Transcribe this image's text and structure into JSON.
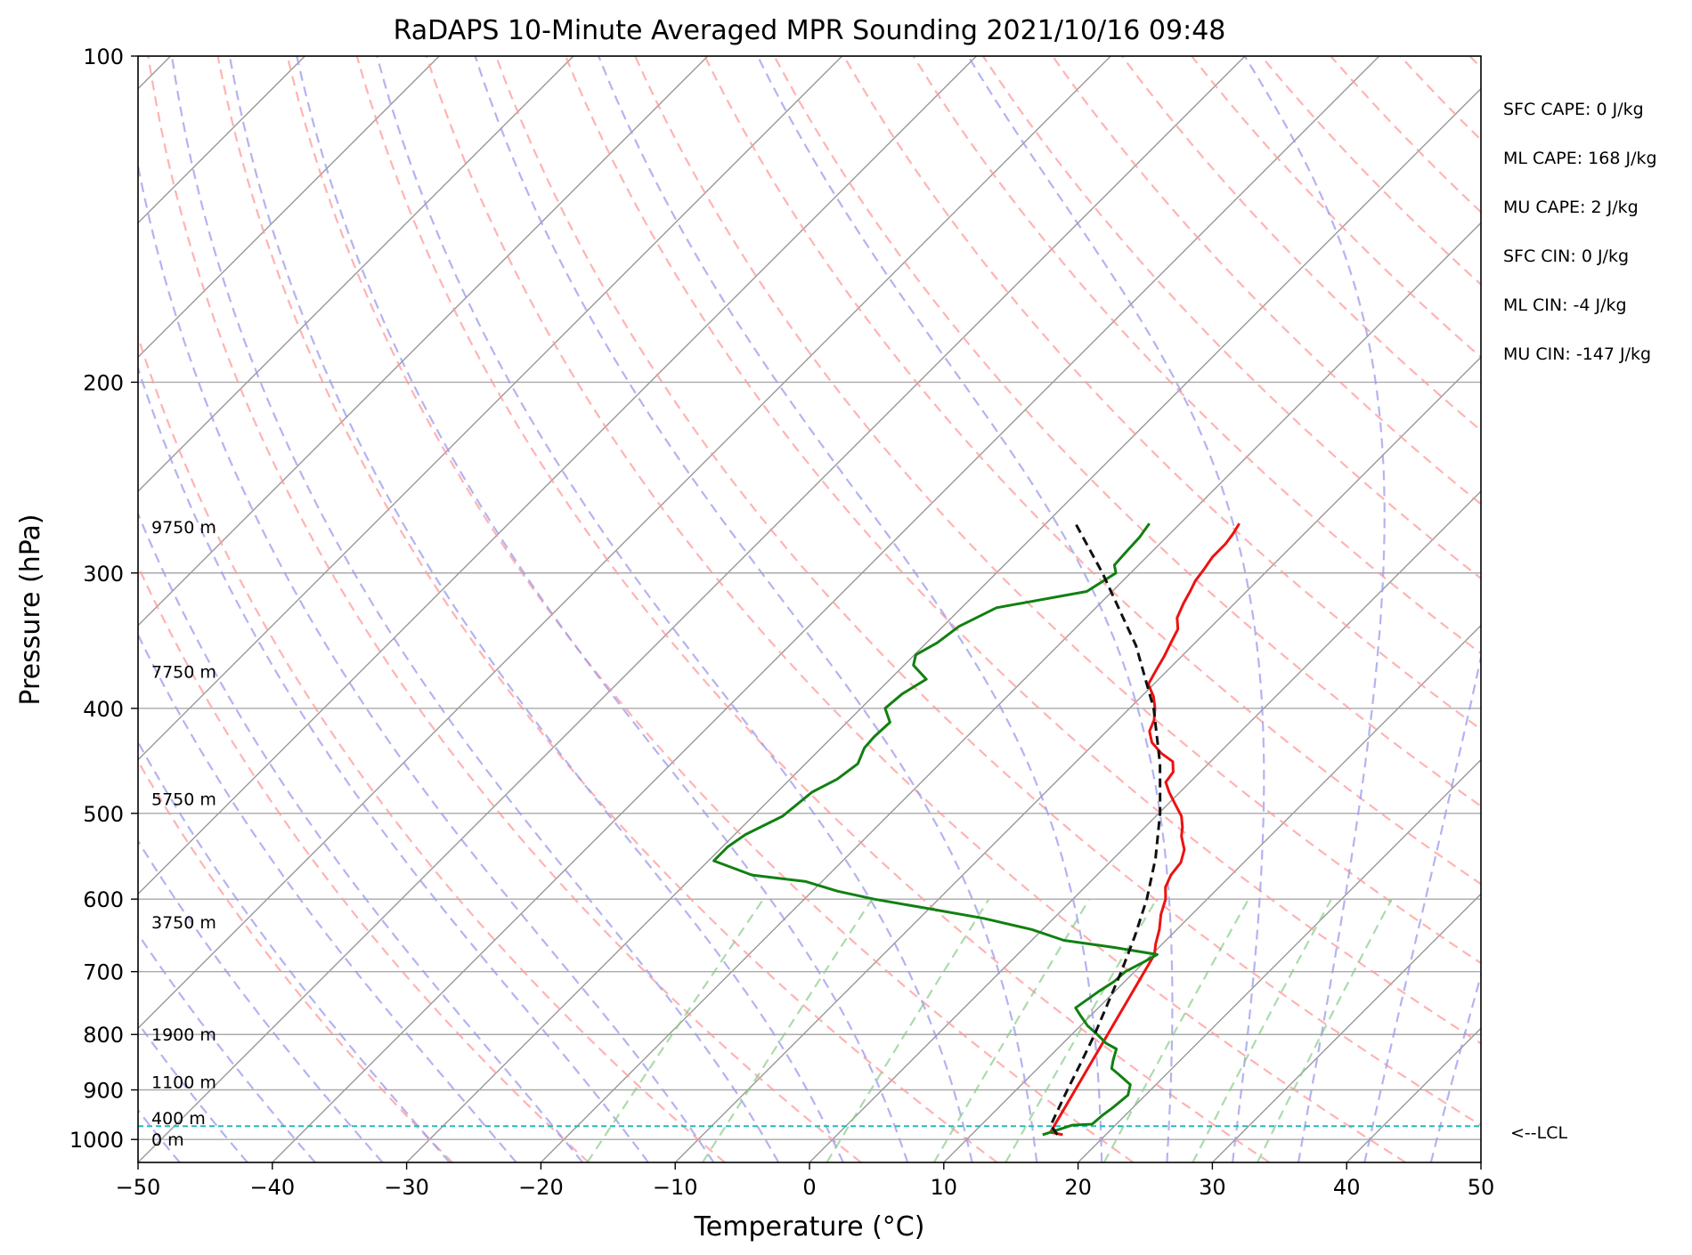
{
  "chart_data": {
    "type": "line",
    "title": "RaDAPS 10-Minute Averaged MPR Sounding 2021/10/16 09:48",
    "xlabel": "Temperature (°C)",
    "ylabel": "Pressure (hPa)",
    "xlim": [
      -50,
      50
    ],
    "ylim": [
      1050,
      100
    ],
    "y_scale": "log",
    "skew": "skew-T",
    "grid": true,
    "x_ticks": [
      "−50",
      "−40",
      "−30",
      "−20",
      "−10",
      "0",
      "10",
      "20",
      "30",
      "40",
      "50"
    ],
    "x_tick_values": [
      -50,
      -40,
      -30,
      -20,
      -10,
      0,
      10,
      20,
      30,
      40,
      50
    ],
    "y_ticks": [
      "100",
      "200",
      "300",
      "400",
      "500",
      "600",
      "700",
      "800",
      "900",
      "1000"
    ],
    "y_tick_values": [
      100,
      200,
      300,
      400,
      500,
      600,
      700,
      800,
      900,
      1000
    ],
    "colors": {
      "temperature": "#ee1111",
      "dewpoint": "#118011",
      "parcel": "#111111",
      "dry_adiabat": "#ff9999",
      "moist_adiabat": "#9999ee",
      "mixing_ratio": "#88cc88",
      "lcl": "#22bbbb",
      "isotherm": "#999999",
      "isobar": "#aaaaaa"
    },
    "series": [
      {
        "key": "temperature",
        "values": [
          [
            990,
            16.8
          ],
          [
            985,
            15.7
          ],
          [
            675,
            10.2
          ],
          [
            660,
            9.5
          ],
          [
            640,
            8.7
          ],
          [
            620,
            7.7
          ],
          [
            600,
            6.9
          ],
          [
            585,
            6.0
          ],
          [
            570,
            5.5
          ],
          [
            555,
            5.3
          ],
          [
            540,
            4.6
          ],
          [
            525,
            3.4
          ],
          [
            515,
            2.8
          ],
          [
            503,
            1.9
          ],
          [
            490,
            0.5
          ],
          [
            478,
            -0.8
          ],
          [
            468,
            -1.8
          ],
          [
            458,
            -2.0
          ],
          [
            448,
            -2.8
          ],
          [
            440,
            -4.3
          ],
          [
            430,
            -5.8
          ],
          [
            420,
            -6.8
          ],
          [
            410,
            -7.3
          ],
          [
            400,
            -8.1
          ],
          [
            390,
            -9.1
          ],
          [
            380,
            -10.4
          ],
          [
            368,
            -10.9
          ],
          [
            358,
            -11.3
          ],
          [
            348,
            -11.8
          ],
          [
            338,
            -12.3
          ],
          [
            330,
            -13.2
          ],
          [
            320,
            -13.8
          ],
          [
            312,
            -14.2
          ],
          [
            305,
            -14.6
          ],
          [
            298,
            -14.8
          ],
          [
            290,
            -15.1
          ],
          [
            282,
            -15.1
          ],
          [
            276,
            -15.3
          ],
          [
            270,
            -15.6
          ]
        ]
      },
      {
        "key": "dewpoint",
        "values": [
          [
            990,
            15.3
          ],
          [
            970,
            16.8
          ],
          [
            968,
            18.2
          ],
          [
            950,
            18.3
          ],
          [
            935,
            18.5
          ],
          [
            910,
            18.7
          ],
          [
            890,
            18.1
          ],
          [
            870,
            16.4
          ],
          [
            860,
            15.5
          ],
          [
            845,
            15.0
          ],
          [
            825,
            14.4
          ],
          [
            815,
            13.2
          ],
          [
            800,
            11.9
          ],
          [
            785,
            10.5
          ],
          [
            768,
            9.2
          ],
          [
            756,
            8.3
          ],
          [
            730,
            8.8
          ],
          [
            715,
            9.2
          ],
          [
            700,
            9.3
          ],
          [
            685,
            10.0
          ],
          [
            675,
            10.4
          ],
          [
            665,
            6.7
          ],
          [
            655,
            2.4
          ],
          [
            640,
            -0.8
          ],
          [
            625,
            -5.2
          ],
          [
            610,
            -10.9
          ],
          [
            600,
            -14.8
          ],
          [
            590,
            -18.1
          ],
          [
            578,
            -21.2
          ],
          [
            570,
            -25.7
          ],
          [
            553,
            -29.6
          ],
          [
            537,
            -29.6
          ],
          [
            523,
            -29.2
          ],
          [
            503,
            -27.8
          ],
          [
            478,
            -27.4
          ],
          [
            465,
            -26.5
          ],
          [
            450,
            -26.1
          ],
          [
            435,
            -26.8
          ],
          [
            425,
            -26.9
          ],
          [
            412,
            -26.8
          ],
          [
            400,
            -28.2
          ],
          [
            388,
            -28.0
          ],
          [
            376,
            -27.3
          ],
          [
            365,
            -29.3
          ],
          [
            357,
            -29.9
          ],
          [
            348,
            -29.2
          ],
          [
            336,
            -28.8
          ],
          [
            323,
            -27.4
          ],
          [
            312,
            -21.9
          ],
          [
            300,
            -21.1
          ],
          [
            295,
            -21.8
          ],
          [
            287,
            -21.9
          ],
          [
            278,
            -22.0
          ],
          [
            270,
            -22.3
          ]
        ]
      },
      {
        "key": "parcel",
        "values": [
          [
            990,
            16.4
          ],
          [
            970,
            15.2
          ],
          [
            950,
            14.8
          ],
          [
            900,
            13.8
          ],
          [
            850,
            12.8
          ],
          [
            800,
            11.7
          ],
          [
            750,
            10.4
          ],
          [
            700,
            9.0
          ],
          [
            650,
            7.4
          ],
          [
            600,
            5.5
          ],
          [
            550,
            3.1
          ],
          [
            500,
            0.1
          ],
          [
            450,
            -3.6
          ],
          [
            400,
            -8.2
          ],
          [
            350,
            -14.2
          ],
          [
            300,
            -22.1
          ],
          [
            270,
            -27.8
          ]
        ]
      }
    ],
    "lcl_pressure": 972,
    "lcl_label": "<--LCL",
    "height_labels": [
      {
        "text": "0 m",
        "p": 1000
      },
      {
        "text": "400 m",
        "p": 955
      },
      {
        "text": "1100 m",
        "p": 885
      },
      {
        "text": "1900 m",
        "p": 800
      },
      {
        "text": "3750 m",
        "p": 630
      },
      {
        "text": "5750 m",
        "p": 485
      },
      {
        "text": "7750 m",
        "p": 370
      },
      {
        "text": "9750 m",
        "p": 272
      }
    ],
    "annotations": [
      "SFC CAPE: 0 J/kg",
      "ML CAPE: 168 J/kg",
      "MU CAPE: 2 J/kg",
      "SFC CIN: 0 J/kg",
      "ML CIN: -4 J/kg",
      "MU CIN: -147 J/kg"
    ]
  }
}
